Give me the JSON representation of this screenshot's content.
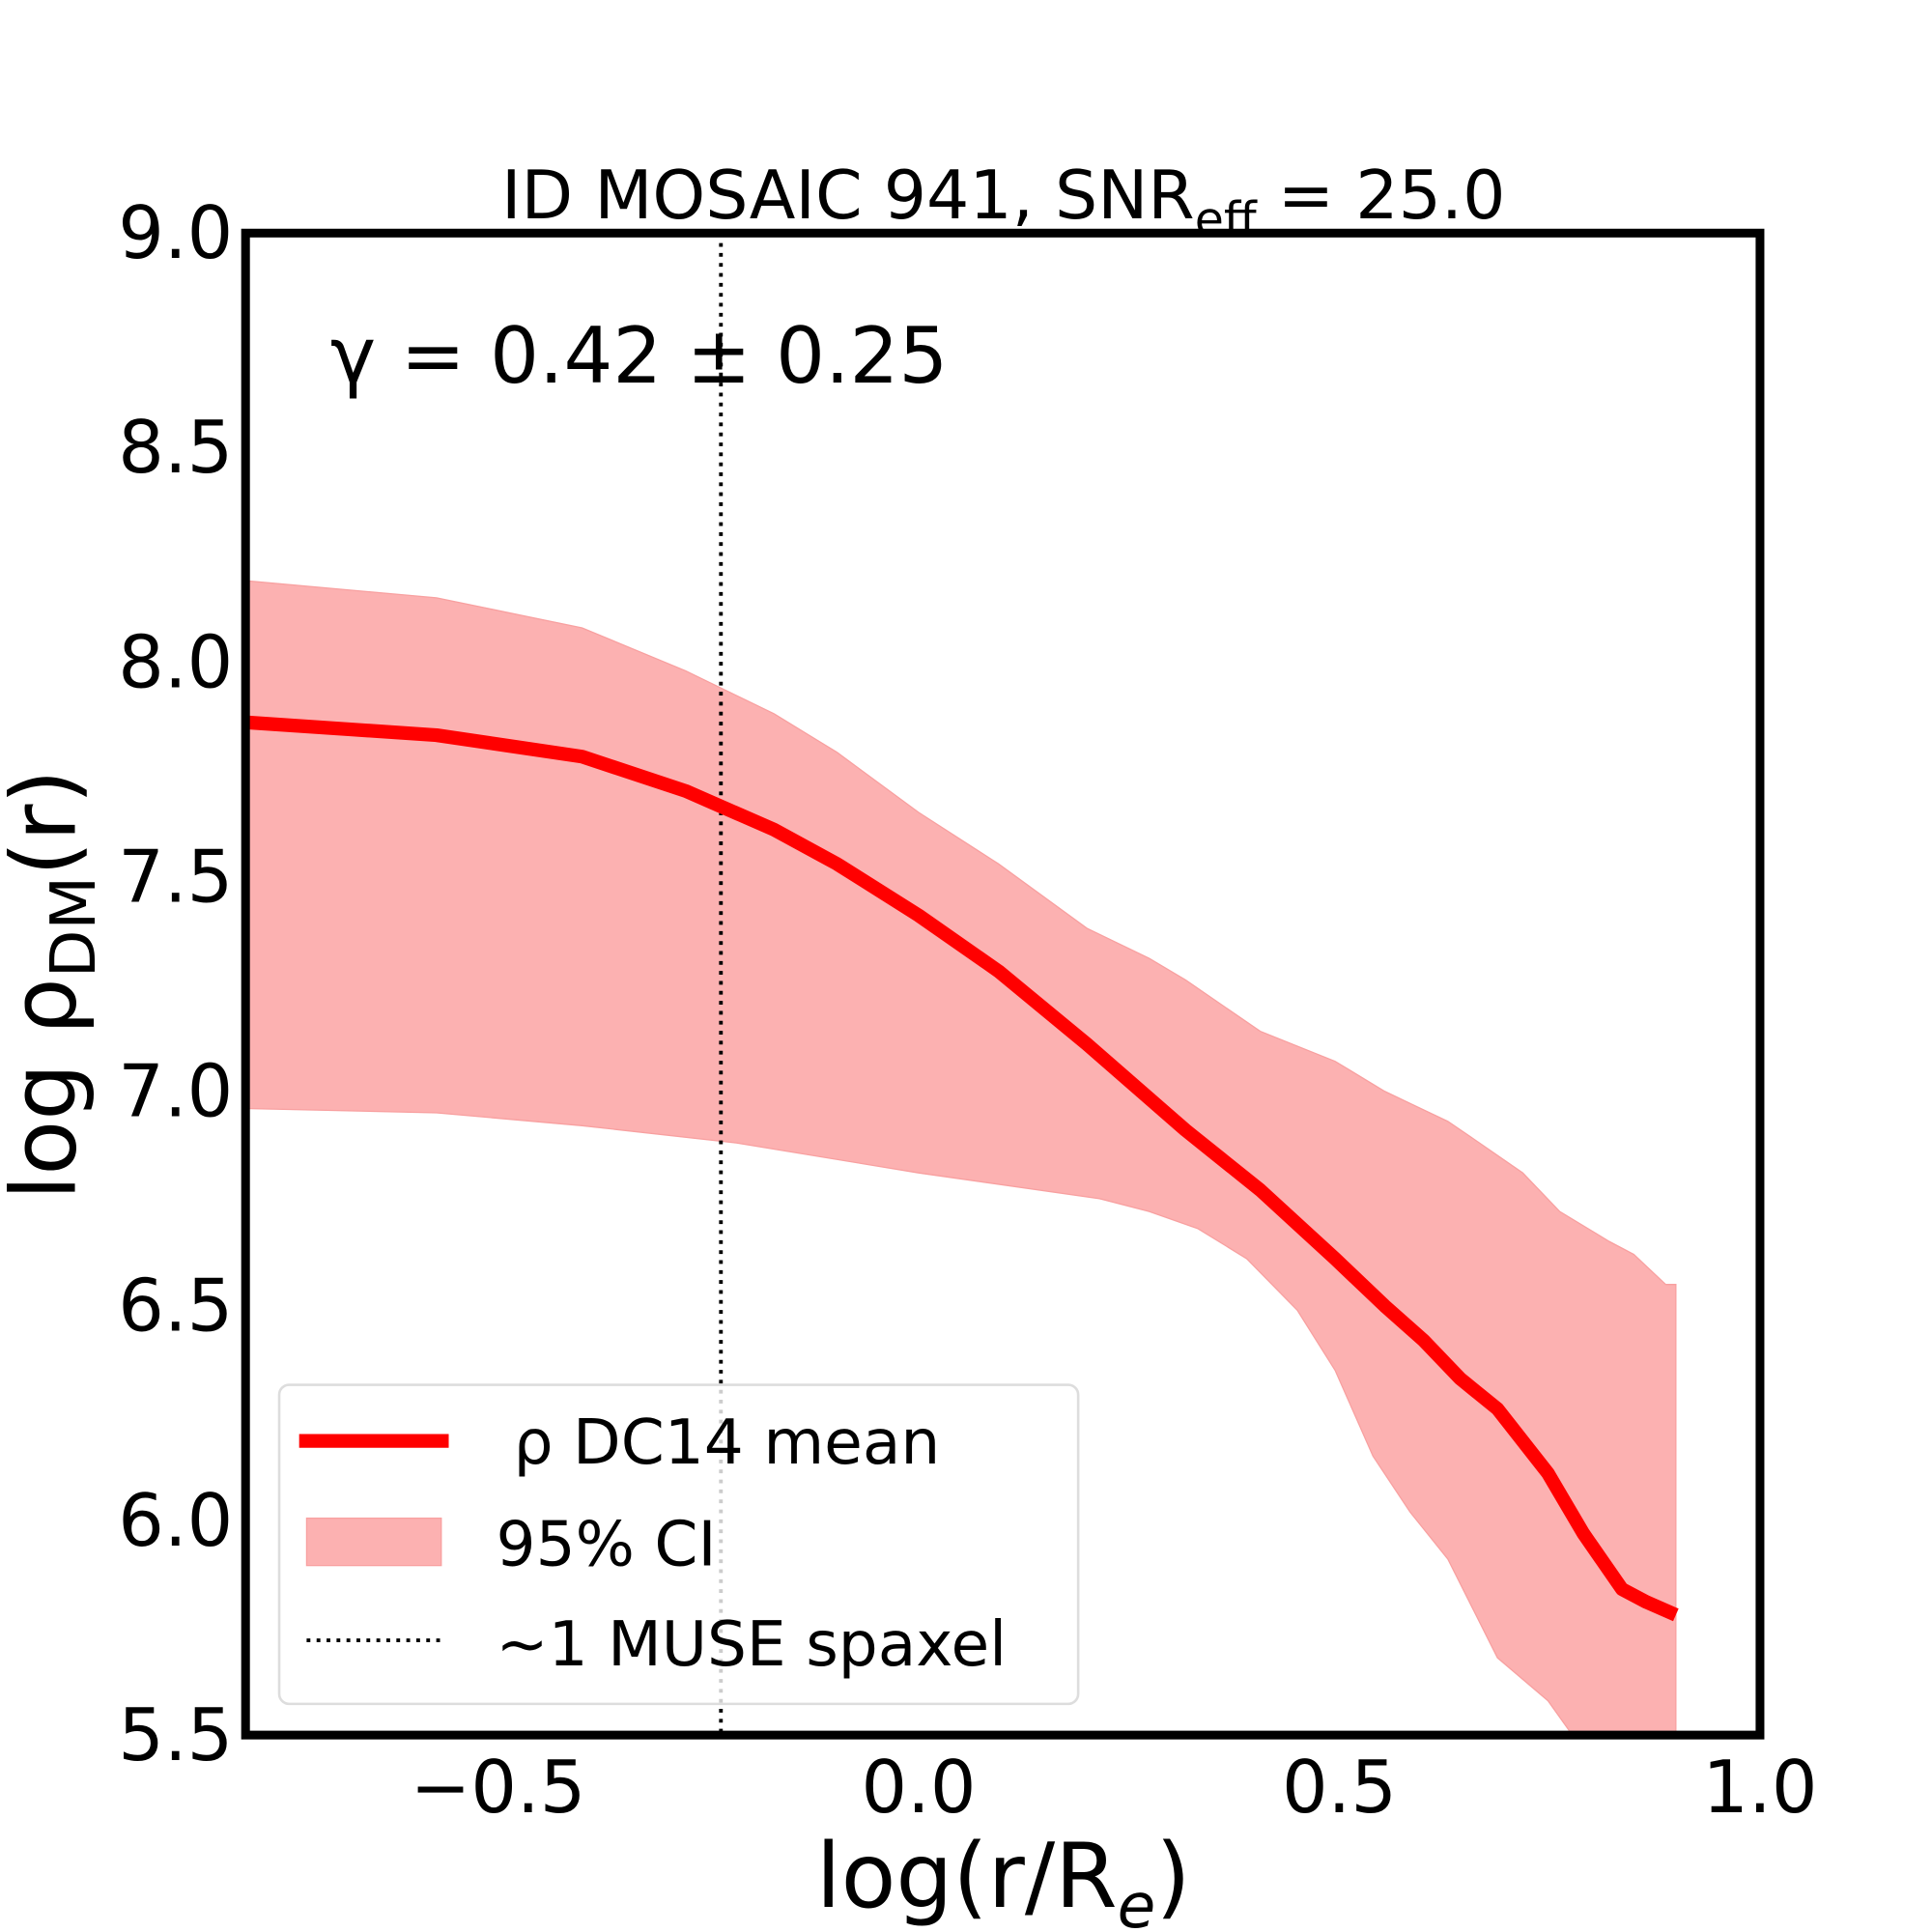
{
  "chart_data": {
    "type": "line",
    "title": "ID MOSAIC 941, SNR",
    "title_sub": "eff",
    "title_tail": " = 25.0",
    "xlabel": "log(r/R",
    "xlabel_sub": "e",
    "xlabel_tail": ")",
    "ylabel": "log ρ",
    "ylabel_sub": "DM",
    "ylabel_tail": "(r)",
    "xlim": [
      -0.8,
      1.0
    ],
    "ylim": [
      5.5,
      9.0
    ],
    "xticks": [
      -0.5,
      0.0,
      0.5,
      1.0
    ],
    "xtick_labels": [
      "−0.5",
      "0.0",
      "0.5",
      "1.0"
    ],
    "yticks": [
      5.5,
      6.0,
      6.5,
      7.0,
      7.5,
      8.0,
      8.5,
      9.0
    ],
    "ytick_labels": [
      "5.5",
      "6.0",
      "6.5",
      "7.0",
      "7.5",
      "8.0",
      "8.5",
      "9.0"
    ],
    "grid": false,
    "annotation": "γ = 0.42 ± 0.25",
    "legend_position": "bottom-left",
    "series": [
      {
        "name": "ρ DC14 mean",
        "color": "#ff0000",
        "x": [
          -0.8,
          -0.573,
          -0.4,
          -0.277,
          -0.172,
          -0.097,
          0.0,
          0.095,
          0.2,
          0.317,
          0.406,
          0.495,
          0.554,
          0.6,
          0.644,
          0.688,
          0.748,
          0.79,
          0.836,
          0.865,
          0.9
        ],
        "y": [
          7.86,
          7.83,
          7.78,
          7.7,
          7.61,
          7.53,
          7.41,
          7.28,
          7.11,
          6.91,
          6.77,
          6.61,
          6.5,
          6.42,
          6.33,
          6.26,
          6.11,
          5.97,
          5.84,
          5.81,
          5.78
        ]
      }
    ],
    "band": {
      "name": "95% CI",
      "color": "#fcb1b1",
      "upper": {
        "x": [
          -0.8,
          -0.573,
          -0.4,
          -0.277,
          -0.172,
          -0.097,
          0.0,
          0.095,
          0.2,
          0.274,
          0.317,
          0.406,
          0.495,
          0.554,
          0.629,
          0.659,
          0.718,
          0.762,
          0.821,
          0.85,
          0.888,
          0.9
        ],
        "y": [
          8.19,
          8.15,
          8.08,
          7.98,
          7.88,
          7.79,
          7.65,
          7.53,
          7.38,
          7.31,
          7.26,
          7.14,
          7.07,
          7.0,
          6.93,
          6.89,
          6.81,
          6.72,
          6.65,
          6.62,
          6.55,
          6.55
        ]
      },
      "lower": {
        "x": [
          -0.8,
          -0.573,
          -0.4,
          -0.217,
          0.0,
          0.215,
          0.274,
          0.332,
          0.39,
          0.45,
          0.495,
          0.54,
          0.584,
          0.629,
          0.688,
          0.748,
          0.777,
          0.83,
          0.9
        ],
        "y": [
          6.96,
          6.95,
          6.92,
          6.88,
          6.81,
          6.75,
          6.72,
          6.68,
          6.61,
          6.49,
          6.35,
          6.15,
          6.02,
          5.91,
          5.68,
          5.58,
          5.5,
          5.4,
          5.3
        ]
      }
    },
    "vline": {
      "name": "~1 MUSE spaxel",
      "x": -0.235
    }
  }
}
